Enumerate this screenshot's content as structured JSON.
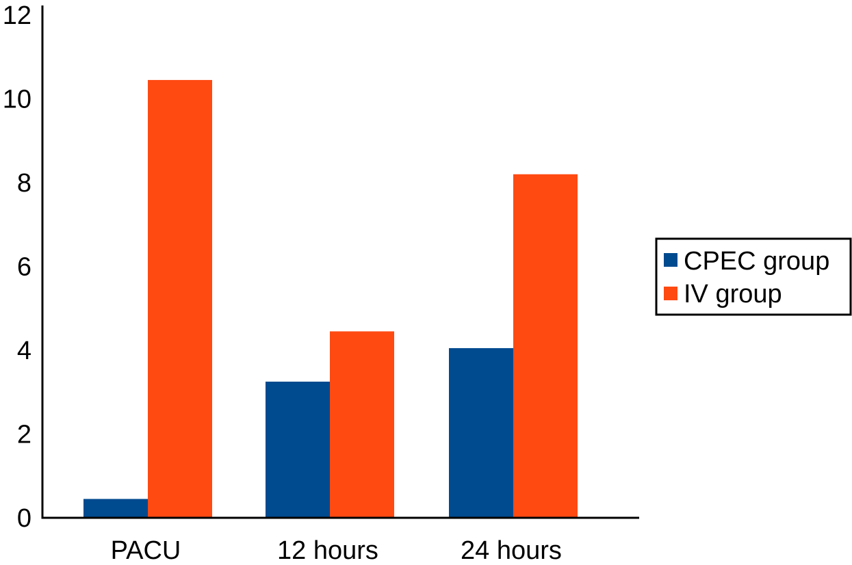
{
  "chart_data": {
    "type": "bar",
    "title": "",
    "xlabel": "",
    "ylabel": "",
    "categories": [
      "PACU",
      "12 hours",
      "24 hours"
    ],
    "series": [
      {
        "name": "CPEC group",
        "values": [
          0.45,
          3.25,
          4.05
        ],
        "color": "#004a8f"
      },
      {
        "name": "IV group",
        "values": [
          10.45,
          4.45,
          8.2
        ],
        "color": "#ff4a12"
      }
    ],
    "ylim": [
      0,
      12
    ],
    "yticks": [
      0,
      2,
      4,
      6,
      8,
      10,
      12
    ],
    "grid": false,
    "legend_position": "right"
  }
}
